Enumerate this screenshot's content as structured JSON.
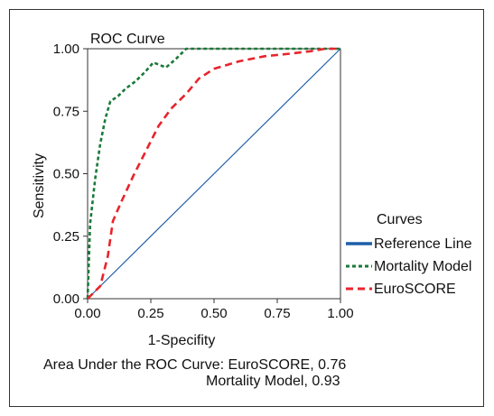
{
  "chart_data": {
    "type": "line",
    "title": "ROC Curve",
    "xlabel": "1-Specifity",
    "ylabel": "Sensitivity",
    "xlim": [
      0,
      1
    ],
    "ylim": [
      0,
      1
    ],
    "xticks": [
      "0.00",
      "0.25",
      "0.50",
      "0.75",
      "1.00"
    ],
    "yticks": [
      "0.00",
      "0.25",
      "0.50",
      "0.75",
      "1.00"
    ],
    "grid": false,
    "legend": {
      "title": "Curves",
      "position": "right"
    },
    "series": [
      {
        "name": "Reference Line",
        "color": "#1f5fa8",
        "style": "solid",
        "points": [
          [
            0,
            0
          ],
          [
            1,
            1
          ]
        ]
      },
      {
        "name": "Mortality Model",
        "color": "#1a7a3a",
        "style": "dotted",
        "points": [
          [
            0,
            0
          ],
          [
            0.01,
            0.3
          ],
          [
            0.03,
            0.48
          ],
          [
            0.05,
            0.62
          ],
          [
            0.07,
            0.72
          ],
          [
            0.09,
            0.79
          ],
          [
            0.12,
            0.81
          ],
          [
            0.15,
            0.84
          ],
          [
            0.19,
            0.87
          ],
          [
            0.23,
            0.91
          ],
          [
            0.26,
            0.945
          ],
          [
            0.31,
            0.925
          ],
          [
            0.35,
            0.96
          ],
          [
            0.39,
            1.0
          ],
          [
            1.0,
            1.0
          ]
        ]
      },
      {
        "name": "EuroSCORE",
        "color": "#e8242c",
        "style": "dashed",
        "points": [
          [
            0,
            0
          ],
          [
            0.05,
            0.05
          ],
          [
            0.08,
            0.17
          ],
          [
            0.1,
            0.31
          ],
          [
            0.13,
            0.38
          ],
          [
            0.18,
            0.49
          ],
          [
            0.23,
            0.59
          ],
          [
            0.28,
            0.69
          ],
          [
            0.33,
            0.76
          ],
          [
            0.39,
            0.82
          ],
          [
            0.44,
            0.88
          ],
          [
            0.5,
            0.92
          ],
          [
            0.6,
            0.95
          ],
          [
            0.7,
            0.97
          ],
          [
            0.8,
            0.98
          ],
          [
            0.88,
            0.99
          ],
          [
            0.94,
            1.0
          ],
          [
            1.0,
            1.0
          ]
        ]
      }
    ],
    "annotation": {
      "line1": "Area Under the ROC Curve: EuroSCORE, 0.76",
      "line2": "Mortality Model, 0.93"
    }
  }
}
